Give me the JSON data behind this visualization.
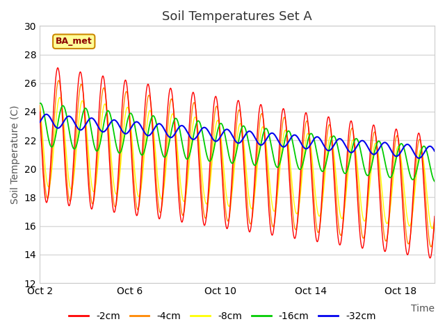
{
  "title": "Soil Temperatures Set A",
  "xlabel": "Time",
  "ylabel": "Soil Temperature (C)",
  "ylim": [
    12,
    30
  ],
  "yticks": [
    12,
    14,
    16,
    18,
    20,
    22,
    24,
    26,
    28,
    30
  ],
  "xtick_labels": [
    "Oct 2",
    "Oct 6",
    "Oct 10",
    "Oct 14",
    "Oct 18"
  ],
  "xtick_positions": [
    2,
    6,
    10,
    14,
    18
  ],
  "xlim": [
    2,
    19.5
  ],
  "legend_labels": [
    "-2cm",
    "-4cm",
    "-8cm",
    "-16cm",
    "-32cm"
  ],
  "legend_colors": [
    "#ff0000",
    "#ff8800",
    "#ffff00",
    "#00cc00",
    "#0000ee"
  ],
  "annotation_text": "BA_met",
  "plot_bg_color": "#ffffff",
  "grid_color": "#d8d8d8",
  "title_fontsize": 13,
  "axis_label_fontsize": 10,
  "tick_fontsize": 10,
  "n_days": 17.5,
  "n_points_per_day": 48
}
